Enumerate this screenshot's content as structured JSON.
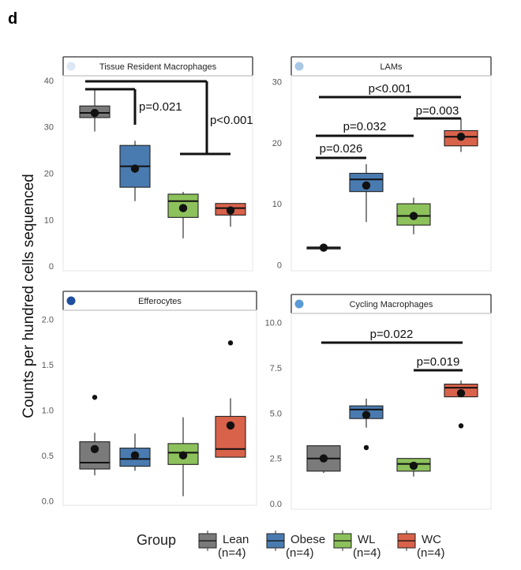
{
  "figure": {
    "panel_letter": "d",
    "ylabel": "Counts per hundred cells sequenced"
  },
  "legend": {
    "title": "Group",
    "items": [
      {
        "key": "Lean",
        "label": "Lean",
        "n": "(n=4)",
        "color": "#7a7a7a"
      },
      {
        "key": "Obese",
        "label": "Obese",
        "n": "(n=4)",
        "color": "#4a7bb0"
      },
      {
        "key": "WL",
        "label": "WL",
        "n": "(n=4)",
        "color": "#8dc15c"
      },
      {
        "key": "WC",
        "label": "WC",
        "n": "(n=4)",
        "color": "#d9624b"
      }
    ]
  },
  "chart_data": [
    {
      "type": "box",
      "title": "Tissue Resident Macrophages",
      "strip_dot_color": "#dde8f4",
      "categories": [
        "Lean",
        "Obese",
        "WL",
        "WC"
      ],
      "ylim": [
        -1,
        41
      ],
      "yticks": [
        0,
        10,
        20,
        30,
        40
      ],
      "boxes": [
        {
          "group": "Lean",
          "whisker_low": 29,
          "q1": 32,
          "median": 33,
          "q3": 34.5,
          "whisker_high": 38,
          "mean": 33,
          "outliers": []
        },
        {
          "group": "Obese",
          "whisker_low": 14,
          "q1": 17,
          "median": 21.5,
          "q3": 26,
          "whisker_high": 27,
          "mean": 21,
          "outliers": []
        },
        {
          "group": "WL",
          "whisker_low": 6,
          "q1": 10.5,
          "median": 14,
          "q3": 15.5,
          "whisker_high": 16,
          "mean": 12.5,
          "outliers": []
        },
        {
          "group": "WC",
          "whisker_low": 8.5,
          "q1": 11,
          "median": 12.5,
          "q3": 13.5,
          "whisker_high": 13.5,
          "mean": 12,
          "outliers": []
        }
      ],
      "comparisons": [
        {
          "from": "Lean",
          "to": "Obese",
          "label": "p=0.021",
          "style": "elbow"
        },
        {
          "from": "Lean",
          "to": "WL–WC",
          "label": "p<0.001",
          "style": "elbow"
        }
      ]
    },
    {
      "type": "box",
      "title": "LAMs",
      "strip_dot_color": "#a9c8e6",
      "categories": [
        "Lean",
        "Obese",
        "WL",
        "WC"
      ],
      "ylim": [
        -1,
        31
      ],
      "yticks": [
        0,
        10,
        20,
        30
      ],
      "boxes": [
        {
          "group": "Lean",
          "whisker_low": 2.5,
          "q1": 2.7,
          "median": 2.8,
          "q3": 2.9,
          "whisker_high": 3.1,
          "mean": 2.8,
          "outliers": []
        },
        {
          "group": "Obese",
          "whisker_low": 7,
          "q1": 12,
          "median": 14,
          "q3": 15,
          "whisker_high": 16.5,
          "mean": 13,
          "outliers": []
        },
        {
          "group": "WL",
          "whisker_low": 5,
          "q1": 6.5,
          "median": 8,
          "q3": 10,
          "whisker_high": 11,
          "mean": 8,
          "outliers": []
        },
        {
          "group": "WC",
          "whisker_low": 18.5,
          "q1": 19.5,
          "median": 21,
          "q3": 22,
          "whisker_high": 24,
          "mean": 21,
          "outliers": []
        }
      ],
      "comparisons": [
        {
          "from": "Lean",
          "to": "WC",
          "label": "p<0.001",
          "style": "bar"
        },
        {
          "from": "WL",
          "to": "WC",
          "label": "p=0.003",
          "style": "bar"
        },
        {
          "from": "Lean",
          "to": "WL",
          "label": "p=0.032",
          "style": "bar"
        },
        {
          "from": "Lean",
          "to": "Obese",
          "label": "p=0.026",
          "style": "bar"
        }
      ]
    },
    {
      "type": "box",
      "title": "Efferocytes",
      "strip_dot_color": "#1f4e9e",
      "categories": [
        "Lean",
        "Obese",
        "WL",
        "WC"
      ],
      "ylim": [
        -0.05,
        2.1
      ],
      "yticks": [
        0.0,
        0.5,
        1.0,
        1.5,
        2.0
      ],
      "ytick_labels": [
        "0.0",
        "0.5",
        "1.0",
        "1.5",
        "2.0"
      ],
      "boxes": [
        {
          "group": "Lean",
          "whisker_low": 0.28,
          "q1": 0.35,
          "median": 0.42,
          "q3": 0.65,
          "whisker_high": 0.75,
          "mean": 0.57,
          "outliers": [
            1.14
          ]
        },
        {
          "group": "Obese",
          "whisker_low": 0.33,
          "q1": 0.38,
          "median": 0.46,
          "q3": 0.58,
          "whisker_high": 0.74,
          "mean": 0.5,
          "outliers": []
        },
        {
          "group": "WL",
          "whisker_low": 0.05,
          "q1": 0.4,
          "median": 0.53,
          "q3": 0.63,
          "whisker_high": 0.92,
          "mean": 0.5,
          "outliers": []
        },
        {
          "group": "WC",
          "whisker_low": 0.48,
          "q1": 0.48,
          "median": 0.57,
          "q3": 0.93,
          "whisker_high": 1.13,
          "mean": 0.83,
          "outliers": [
            1.74
          ]
        }
      ],
      "comparisons": []
    },
    {
      "type": "box",
      "title": "Cycling Macrophages",
      "strip_dot_color": "#5a9bd5",
      "categories": [
        "Lean",
        "Obese",
        "WL",
        "WC"
      ],
      "ylim": [
        -0.3,
        10.5
      ],
      "yticks": [
        0.0,
        2.5,
        5.0,
        7.5,
        10.0
      ],
      "ytick_labels": [
        "0.0",
        "2.5",
        "5.0",
        "7.5",
        "10.0"
      ],
      "boxes": [
        {
          "group": "Lean",
          "whisker_low": 1.7,
          "q1": 1.8,
          "median": 2.5,
          "q3": 3.2,
          "whisker_high": 3.2,
          "mean": 2.5,
          "outliers": []
        },
        {
          "group": "Obese",
          "whisker_low": 4.2,
          "q1": 4.7,
          "median": 5.2,
          "q3": 5.4,
          "whisker_high": 5.8,
          "mean": 4.9,
          "outliers": [
            3.1
          ]
        },
        {
          "group": "WL",
          "whisker_low": 1.5,
          "q1": 1.8,
          "median": 2.2,
          "q3": 2.5,
          "whisker_high": 2.5,
          "mean": 2.1,
          "outliers": []
        },
        {
          "group": "WC",
          "whisker_low": 5.9,
          "q1": 5.9,
          "median": 6.4,
          "q3": 6.6,
          "whisker_high": 6.8,
          "mean": 6.1,
          "outliers": [
            4.3
          ]
        }
      ],
      "comparisons": [
        {
          "from": "Lean",
          "to": "WC",
          "label": "p=0.022",
          "style": "bar"
        },
        {
          "from": "WL",
          "to": "WC",
          "label": "p=0.019",
          "style": "bar"
        }
      ]
    }
  ]
}
